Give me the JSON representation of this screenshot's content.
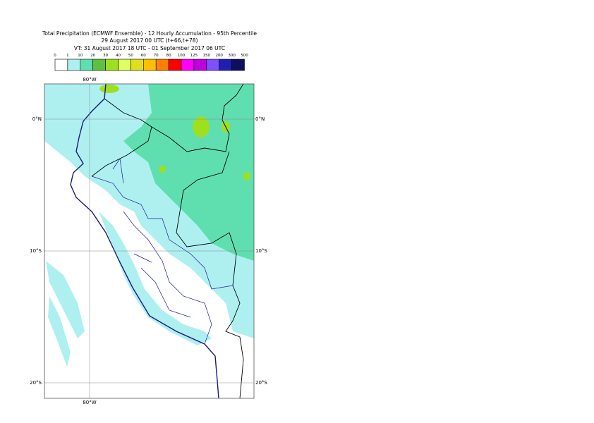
{
  "header": {
    "line1": "Total Precipitation (ECMWF Ensemble) - 12 Hourly Accumulation - 95th Percentile",
    "line2": "29 August 2017 00 UTC (t+66,t+78)",
    "line3": "VT: 31 August 2017 18 UTC - 01 September 2017 06 UTC"
  },
  "legend": {
    "thresholds": [
      "0",
      "1",
      "10",
      "20",
      "30",
      "40",
      "50",
      "60",
      "70",
      "80",
      "100",
      "125",
      "150",
      "200",
      "300",
      "500"
    ],
    "colors": [
      "#ffffff",
      "#aef0f0",
      "#5fdfb0",
      "#5fbf3f",
      "#9fdf1f",
      "#dfff5f",
      "#dfdf1f",
      "#ffbf00",
      "#ff7f00",
      "#ff0000",
      "#ff00ff",
      "#bf00df",
      "#7f4fff",
      "#1f1faf",
      "#0f0f5f"
    ]
  },
  "map": {
    "lon_label_top": "80°W",
    "lon_label_bottom": "80°W",
    "lat_labels_left": [
      "0°N",
      "10°S",
      "20°S"
    ],
    "lat_labels_right": [
      "0°N",
      "10°S",
      "20°S"
    ]
  }
}
